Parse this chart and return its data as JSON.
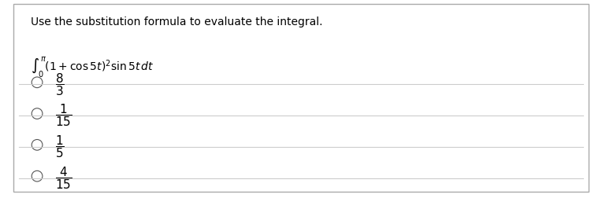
{
  "title": "Use the substitution formula to evaluate the integral.",
  "integral_text": "$\\int_{0}^{\\pi} (1 + \\cos 5t)^2 \\sin 5t \\, dt$",
  "options": [
    "$\\dfrac{8}{3}$",
    "$\\dfrac{1}{15}$",
    "$\\dfrac{1}{5}$",
    "$\\dfrac{4}{15}$"
  ],
  "bg_color": "#ffffff",
  "text_color": "#000000",
  "line_color": "#cccccc",
  "title_fontsize": 10,
  "integral_fontsize": 10,
  "option_fontsize": 11,
  "fig_width": 7.64,
  "fig_height": 2.53
}
